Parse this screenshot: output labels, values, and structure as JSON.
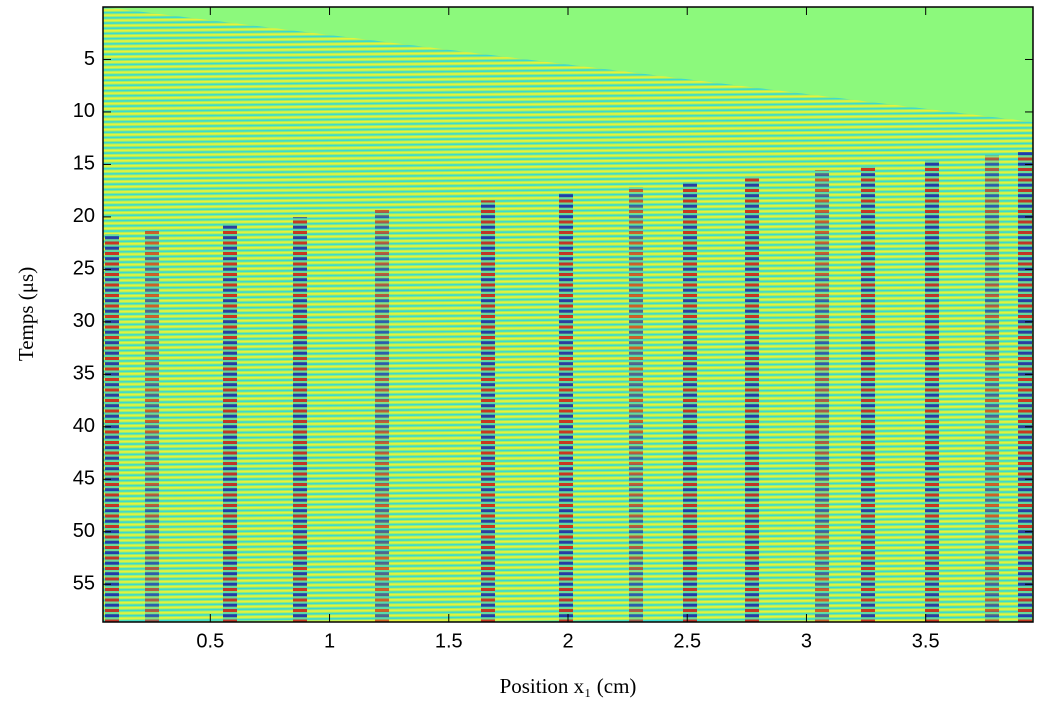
{
  "chart_data": {
    "type": "heatmap",
    "xlabel": "Position x₁ (cm)",
    "ylabel": "Temps (μs)",
    "xlim": [
      0.05,
      3.95
    ],
    "xticks": [
      0.5,
      1,
      1.5,
      2,
      2.5,
      3,
      3.5
    ],
    "ylim": [
      58.6,
      0
    ],
    "yticks": [
      5,
      10,
      15,
      20,
      25,
      30,
      35,
      40,
      45,
      50,
      55
    ]
  }
}
